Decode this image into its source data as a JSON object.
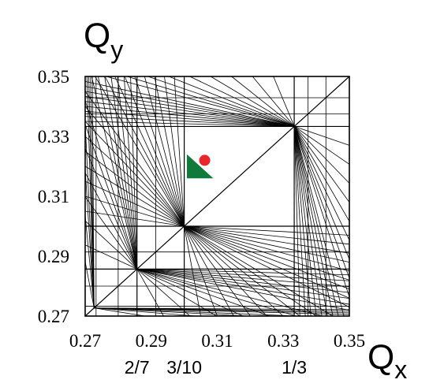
{
  "chart_data": {
    "type": "scatter",
    "title": "",
    "xlabel": "Q",
    "xlabel_subscript": "x",
    "ylabel": "Q",
    "ylabel_subscript": "y",
    "xlim": [
      0.27,
      0.35
    ],
    "ylim": [
      0.27,
      0.35
    ],
    "x_ticks": [
      "0.27",
      "0.29",
      "0.31",
      "0.33",
      "0.35"
    ],
    "y_ticks": [
      "0.35",
      "0.33",
      "0.31",
      "0.29",
      "0.27"
    ],
    "resonance_labels": [
      {
        "text": "2/7",
        "x": 0.2857
      },
      {
        "text": "3/10",
        "x": 0.3
      },
      {
        "text": "1/3",
        "x": 0.3333
      }
    ],
    "series": [
      {
        "marker": "dot",
        "color": "#e8262b",
        "x": [
          0.3062
        ],
        "y": [
          0.322
        ]
      },
      {
        "marker": "triangle",
        "color": "#0f7a3a",
        "vertices": [
          [
            0.3008,
            0.324
          ],
          [
            0.3008,
            0.316
          ],
          [
            0.3088,
            0.316
          ]
        ]
      }
    ],
    "resonance_lines": {
      "color": "#000000",
      "description_from_axes": "diagonal Qx=Qy with nodes at 2/7, 3/10, 1/3; vertical/horizontal lines at resonance values"
    }
  }
}
